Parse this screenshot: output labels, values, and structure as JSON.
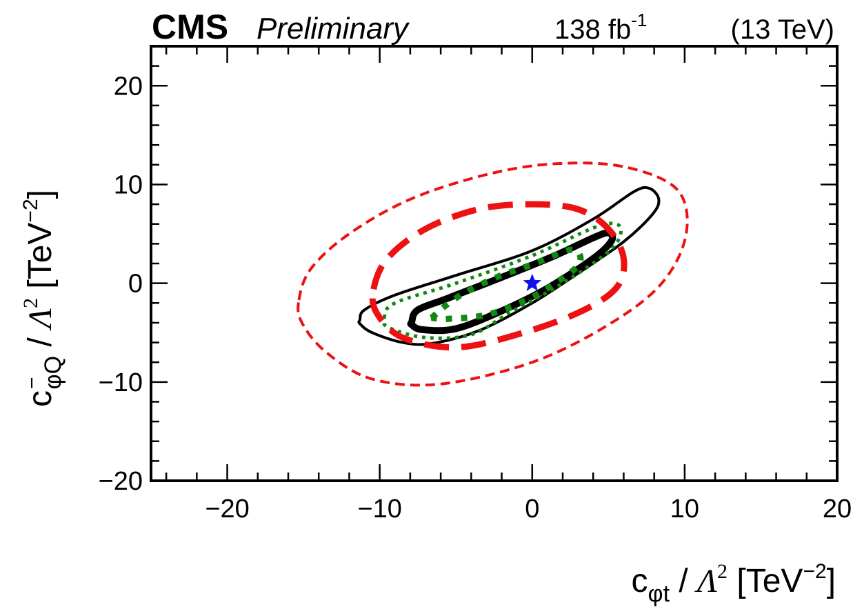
{
  "header": {
    "experiment": "CMS",
    "status": "Preliminary",
    "lumi_value": "138 fb",
    "lumi_exp": "-1",
    "energy": "(13 TeV)"
  },
  "chart_data": {
    "type": "contour",
    "xlim": [
      -25,
      20
    ],
    "ylim": [
      -20,
      24
    ],
    "x_ticks": [
      -20,
      -10,
      0,
      10,
      20
    ],
    "y_ticks": [
      -20,
      -10,
      0,
      10,
      20
    ],
    "x_tick_labels": [
      "−20",
      "−10",
      "0",
      "10",
      "20"
    ],
    "y_tick_labels": [
      "−20",
      "−10",
      "0",
      "10",
      "20"
    ],
    "xlabel": {
      "base": "c",
      "sub": "φt",
      "slash": " / ",
      "lambda": "Λ",
      "lambda_exp": "2",
      "unit": " [TeV",
      "unit_exp": "−2",
      "close": "]"
    },
    "ylabel": {
      "base": "c",
      "sub_bar": "−",
      "sub": "φQ",
      "slash": " / ",
      "lambda": "Λ",
      "lambda_exp": "2",
      "unit": " [TeV",
      "unit_exp": "−2",
      "close": "]"
    },
    "best_fit": {
      "x": 0.0,
      "y": 0.0
    },
    "contours": [
      {
        "name": "black-95-thin",
        "color": "#000000",
        "style": "solid-thin",
        "points": [
          [
            -11.3,
            -3.7
          ],
          [
            -11.0,
            -2.7
          ],
          [
            -9.0,
            -1.2
          ],
          [
            -5.0,
            0.8
          ],
          [
            0.0,
            3.3
          ],
          [
            4.0,
            6.5
          ],
          [
            6.7,
            9.3
          ],
          [
            7.7,
            9.6
          ],
          [
            8.3,
            8.5
          ],
          [
            7.9,
            7.0
          ],
          [
            6.0,
            4.2
          ],
          [
            3.0,
            1.0
          ],
          [
            0.0,
            -2.0
          ],
          [
            -3.5,
            -4.8
          ],
          [
            -6.6,
            -6.1
          ],
          [
            -8.5,
            -6.0
          ],
          [
            -10.5,
            -5.0
          ],
          [
            -11.3,
            -4.1
          ]
        ]
      },
      {
        "name": "black-68-thick",
        "color": "#000000",
        "style": "solid-thick",
        "points": [
          [
            -7.9,
            -3.9
          ],
          [
            -7.5,
            -2.7
          ],
          [
            -5.5,
            -1.5
          ],
          [
            -2.0,
            0.6
          ],
          [
            1.5,
            2.8
          ],
          [
            4.0,
            4.6
          ],
          [
            5.0,
            5.1
          ],
          [
            5.2,
            4.3
          ],
          [
            4.0,
            2.5
          ],
          [
            1.0,
            -0.5
          ],
          [
            -2.0,
            -2.8
          ],
          [
            -5.0,
            -4.6
          ],
          [
            -7.2,
            -4.7
          ],
          [
            -7.9,
            -4.2
          ]
        ]
      },
      {
        "name": "green-95-dotted",
        "color": "#118811",
        "style": "dotted-thin",
        "points": [
          [
            -9.7,
            -3.5
          ],
          [
            -9.0,
            -2.0
          ],
          [
            -5.0,
            0.0
          ],
          [
            0.0,
            2.8
          ],
          [
            4.0,
            5.6
          ],
          [
            5.5,
            6.0
          ],
          [
            5.8,
            5.0
          ],
          [
            5.0,
            3.2
          ],
          [
            2.0,
            0.0
          ],
          [
            -1.5,
            -3.0
          ],
          [
            -4.0,
            -5.2
          ],
          [
            -7.0,
            -5.5
          ],
          [
            -9.4,
            -4.5
          ]
        ]
      },
      {
        "name": "green-68-dotted",
        "color": "#118811",
        "style": "dotted-thick",
        "points": [
          [
            -6.6,
            -3.5
          ],
          [
            -5.0,
            -1.5
          ],
          [
            -2.5,
            0.5
          ],
          [
            0.0,
            1.9
          ],
          [
            2.6,
            3.4
          ],
          [
            3.1,
            2.0
          ],
          [
            1.5,
            0.0
          ],
          [
            -0.5,
            -1.8
          ],
          [
            -3.0,
            -3.2
          ],
          [
            -5.5,
            -3.6
          ],
          [
            -6.6,
            -3.5
          ]
        ]
      },
      {
        "name": "red-95-dashed",
        "color": "#ee1111",
        "style": "dashed-thin",
        "points": [
          [
            -15.3,
            -1.7
          ],
          [
            -14.5,
            1.5
          ],
          [
            -12.0,
            5.0
          ],
          [
            -8.0,
            8.5
          ],
          [
            -3.0,
            11.0
          ],
          [
            1.5,
            12.1
          ],
          [
            6.0,
            11.8
          ],
          [
            9.5,
            9.5
          ],
          [
            10.1,
            5.0
          ],
          [
            8.5,
            0.0
          ],
          [
            5.0,
            -4.2
          ],
          [
            0.0,
            -8.0
          ],
          [
            -6.0,
            -10.2
          ],
          [
            -10.5,
            -9.7
          ],
          [
            -13.5,
            -7.0
          ],
          [
            -15.1,
            -4.0
          ]
        ]
      },
      {
        "name": "red-68-dashed",
        "color": "#ee1111",
        "style": "dashed-thick",
        "points": [
          [
            -10.4,
            -0.6
          ],
          [
            -9.5,
            2.5
          ],
          [
            -7.0,
            5.5
          ],
          [
            -3.5,
            7.5
          ],
          [
            0.0,
            8.0
          ],
          [
            3.0,
            7.5
          ],
          [
            5.0,
            5.5
          ],
          [
            6.0,
            2.5
          ],
          [
            5.5,
            -0.5
          ],
          [
            3.0,
            -3.0
          ],
          [
            -1.0,
            -5.2
          ],
          [
            -5.0,
            -6.5
          ],
          [
            -8.5,
            -5.5
          ],
          [
            -10.2,
            -3.0
          ]
        ]
      }
    ]
  }
}
